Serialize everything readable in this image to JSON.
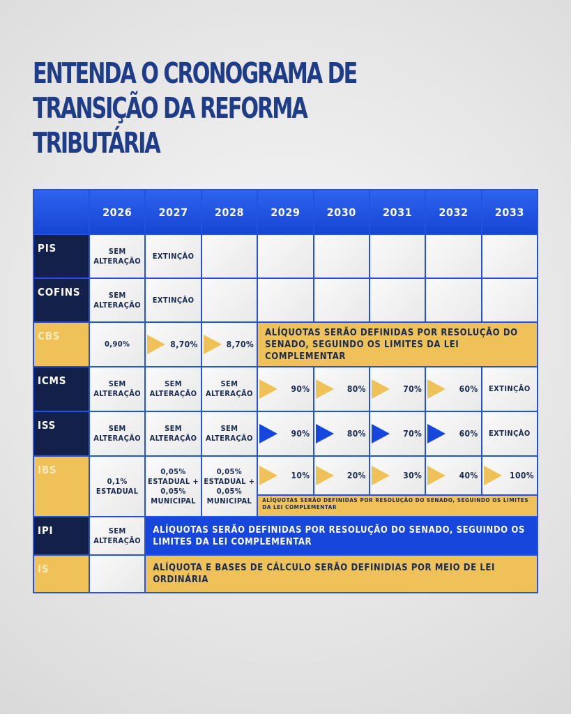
{
  "header": {
    "title": [
      "ENTENDA O CRONOGRAMA DE",
      "TRANSIÇÃO DA REFORMA",
      "TRIBUTÁRIA"
    ]
  },
  "table": {
    "header": [
      "2026",
      "2027",
      "2028",
      "2029",
      "2030",
      "2031",
      "2032",
      "2033"
    ],
    "rows": [
      {
        "label": "PIS",
        "cells": [
          "SEM ALTERAÇÃO",
          "EXTINÇÃO"
        ]
      },
      {
        "label": "COFINS",
        "cells": [
          "SEM ALTERAÇÃO",
          "EXTINÇÃO"
        ]
      },
      {
        "label": "CBS",
        "cells": [
          "0,90%",
          "8,70%",
          "8,70%"
        ],
        "note": "ALÍQUOTAS SERÃO DEFINIDAS POR RESOLUÇÃO DO SENADO, SEGUINDO OS LIMITES DA LEI COMPLEMENTAR"
      },
      {
        "label": "ICMS",
        "cells": [
          "SEM ALTERAÇÃO",
          "SEM ALTERAÇÃO",
          "SEM ALTERAÇÃO",
          "90%",
          "80%",
          "70%",
          "60%",
          "EXTINÇÃO"
        ]
      },
      {
        "label": "ISS",
        "cells": [
          "SEM ALTERAÇÃO",
          "SEM ALTERAÇÃO",
          "SEM ALTERAÇÃO",
          "90%",
          "80%",
          "70%",
          "60%",
          "EXTINÇÃO"
        ]
      },
      {
        "label": "IBS",
        "cells": [
          "0,1% ESTADUAL",
          "0,05% ESTADUAL + 0,05% MUNICIPAL",
          "0,05% ESTADUAL + 0,05% MUNICIPAL",
          "10%",
          "20%",
          "30%",
          "40%",
          "100%"
        ],
        "note": "ALÍQUOTAS SERÃO DEFINIDAS POR RESOLUÇÃO DO SENADO, SEGUINDO OS LIMITES DA LEI COMPLEMENTAR"
      },
      {
        "label": "IPI",
        "cells": [
          "SEM ALTERAÇÃO"
        ],
        "note": "ALÍQUOTAS SERÃO DEFINIDAS POR RESOLUÇÃO DO SENADO, SEGUINDO OS LIMITES DA LEI COMPLEMENTAR"
      },
      {
        "label": "IS",
        "note": "ALÍQUOTA E BASES DE CÁLCULO SERÃO DEFINIDIAS POR MEIO DE LEI ORDINÁRIA"
      }
    ]
  }
}
